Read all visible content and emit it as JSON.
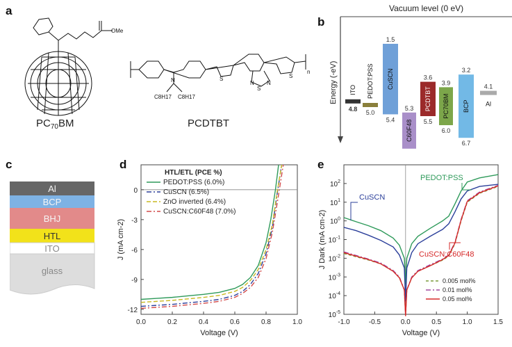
{
  "panel_labels": [
    "a",
    "b",
    "c",
    "d",
    "e"
  ],
  "panel_a": {
    "molecule1_name": "PC70BM",
    "molecule1_sub": "70",
    "molecule1_prefix": "PC",
    "molecule1_suffix": "BM",
    "molecule1_group": "OMe",
    "molecule2_name": "PCDTBT",
    "molecule2_sidechain": "C8H17",
    "molecule2_n": "n",
    "atoms": {
      "N": "N",
      "S": "S"
    }
  },
  "panel_b": {
    "title": "Vacuum level (0 eV)",
    "ylabel": "Energy (-eV)",
    "materials": [
      {
        "name": "ITO",
        "top": "",
        "bottom": "4.8",
        "color": "#333333"
      },
      {
        "name": "PEDOT:PSS",
        "top": "",
        "bottom": "5.0",
        "color": "#8a7f3b"
      },
      {
        "name": "CuSCN",
        "top": "1.5",
        "bottom": "5.4",
        "color": "#6fa0d8"
      },
      {
        "name": "C60F48",
        "top": "5.3",
        "bottom": "",
        "color": "#a98fc9"
      },
      {
        "name": "PCDTBT",
        "top": "3.6",
        "bottom": "5.5",
        "color": "#9b2a2a"
      },
      {
        "name": "PC70BM",
        "top": "3.9",
        "bottom": "6.0",
        "color": "#7ca64a"
      },
      {
        "name": "BCP",
        "top": "3.2",
        "bottom": "6.7",
        "color": "#72b9e6"
      },
      {
        "name": "Al",
        "top": "4.1",
        "bottom": "",
        "color": "#aaaaaa"
      }
    ]
  },
  "panel_c": {
    "layers": [
      {
        "name": "Al",
        "color": "#666666"
      },
      {
        "name": "BCP",
        "color": "#7eb2e4"
      },
      {
        "name": "BHJ",
        "color": "#e28a8a"
      },
      {
        "name": "HTL",
        "color": "#f2e21a"
      },
      {
        "name": "ITO",
        "color": "#ffffff"
      },
      {
        "name": "glass",
        "color": "#dddddd"
      }
    ]
  },
  "chart_data": [
    {
      "type": "line",
      "panel": "d",
      "xlabel": "Voltage (V)",
      "ylabel": "J (mA cm-2)",
      "xlim": [
        0.0,
        1.0
      ],
      "ylim": [
        -12.5,
        2.5
      ],
      "xticks": [
        "0.0",
        "0.2",
        "0.4",
        "0.6",
        "0.8",
        "1.0"
      ],
      "yticks": [
        "0",
        "-3",
        "-6",
        "-9",
        "-12"
      ],
      "legend_title": "HTL/ETL (PCE %)",
      "series": [
        {
          "name": "PEDOT:PSS (6.0%)",
          "color": "#2e9a5a",
          "dash": "",
          "x": [
            0,
            0.1,
            0.2,
            0.3,
            0.4,
            0.5,
            0.6,
            0.65,
            0.7,
            0.75,
            0.8,
            0.83,
            0.86,
            0.88
          ],
          "y": [
            -11.0,
            -10.9,
            -10.8,
            -10.65,
            -10.5,
            -10.3,
            -9.9,
            -9.5,
            -8.8,
            -7.6,
            -5.3,
            -3.0,
            0.0,
            2.5
          ]
        },
        {
          "name": "CuSCN (6.5%)",
          "color": "#2b3f9a",
          "dash": "7,3,2,3",
          "x": [
            0,
            0.1,
            0.2,
            0.3,
            0.4,
            0.5,
            0.6,
            0.65,
            0.7,
            0.75,
            0.8,
            0.84,
            0.87,
            0.9
          ],
          "y": [
            -11.7,
            -11.6,
            -11.5,
            -11.35,
            -11.2,
            -11.0,
            -10.6,
            -10.2,
            -9.5,
            -8.4,
            -6.4,
            -3.8,
            -0.5,
            2.5
          ]
        },
        {
          "name": "ZnO inverted (6.4%)",
          "color": "#c9b820",
          "dash": "6,3",
          "x": [
            0,
            0.1,
            0.2,
            0.3,
            0.4,
            0.5,
            0.6,
            0.65,
            0.7,
            0.75,
            0.8,
            0.84,
            0.87,
            0.9
          ],
          "y": [
            -11.3,
            -11.2,
            -11.1,
            -10.95,
            -10.8,
            -10.6,
            -10.2,
            -9.8,
            -9.1,
            -8.0,
            -6.0,
            -3.5,
            -0.3,
            2.5
          ]
        },
        {
          "name": "CuSCN:C60F48 (7.0%)",
          "color": "#d24a4a",
          "dash": "7,3,2,3",
          "x": [
            0,
            0.1,
            0.2,
            0.3,
            0.4,
            0.5,
            0.6,
            0.65,
            0.7,
            0.75,
            0.8,
            0.84,
            0.88,
            0.91
          ],
          "y": [
            -11.9,
            -11.8,
            -11.7,
            -11.55,
            -11.4,
            -11.2,
            -10.8,
            -10.4,
            -9.8,
            -8.8,
            -6.9,
            -4.3,
            -0.5,
            2.5
          ]
        }
      ]
    },
    {
      "type": "line",
      "panel": "e",
      "xlabel": "Voltage (V)",
      "ylabel": "J Dark (mA cm-2)",
      "yscale": "log",
      "xlim": [
        -1.0,
        1.5
      ],
      "ylim": [
        1e-05,
        1000
      ],
      "xticks": [
        "-1.0",
        "-0.5",
        "0.0",
        "0.5",
        "1.0",
        "1.5"
      ],
      "yticks_exp": [
        "-5",
        "-4",
        "-3",
        "-2",
        "-1",
        "0",
        "1",
        "2"
      ],
      "annotations": [
        "CuSCN",
        "PEDOT:PSS",
        "CuSCN:C60F48"
      ],
      "legend": [
        "0.005 mol%",
        "0.01 mol%",
        "0.05 mol%"
      ],
      "series": [
        {
          "name": "PEDOT:PSS",
          "color": "#2e9a5a",
          "dash": "",
          "x": [
            -1.0,
            -0.8,
            -0.6,
            -0.4,
            -0.2,
            -0.1,
            -0.02,
            0,
            0.02,
            0.1,
            0.2,
            0.4,
            0.6,
            0.7,
            0.8,
            0.9,
            1.0,
            1.2,
            1.5
          ],
          "y": [
            1.5,
            0.9,
            0.55,
            0.3,
            0.12,
            0.05,
            0.01,
            0.0004,
            0.01,
            0.06,
            0.15,
            0.4,
            1.0,
            1.8,
            8,
            40,
            120,
            200,
            300
          ]
        },
        {
          "name": "CuSCN",
          "color": "#2b3f9a",
          "dash": "",
          "x": [
            -1.0,
            -0.8,
            -0.6,
            -0.4,
            -0.2,
            -0.1,
            -0.02,
            0,
            0.02,
            0.1,
            0.2,
            0.4,
            0.6,
            0.7,
            0.8,
            0.9,
            1.0,
            1.2,
            1.5
          ],
          "y": [
            0.45,
            0.3,
            0.17,
            0.09,
            0.04,
            0.015,
            0.003,
            5e-05,
            0.003,
            0.02,
            0.06,
            0.15,
            0.35,
            0.7,
            3,
            15,
            40,
            70,
            90
          ]
        },
        {
          "name": "0.005 mol%",
          "color": "#7a9a3a",
          "dash": "4,3",
          "x": [
            -1.0,
            -0.8,
            -0.6,
            -0.4,
            -0.2,
            -0.1,
            -0.02,
            0,
            0.02,
            0.1,
            0.2,
            0.4,
            0.6,
            0.7,
            0.8,
            0.9,
            1.0,
            1.2,
            1.5
          ],
          "y": [
            0.018,
            0.012,
            0.008,
            0.005,
            0.002,
            0.0009,
            0.0002,
            1e-05,
            0.0002,
            0.0009,
            0.002,
            0.004,
            0.008,
            0.013,
            0.06,
            1.0,
            10,
            30,
            70
          ]
        },
        {
          "name": "0.01 mol%",
          "color": "#a04aa0",
          "dash": "7,3,2,3",
          "x": [
            -1.0,
            -0.8,
            -0.6,
            -0.4,
            -0.2,
            -0.1,
            -0.02,
            0,
            0.02,
            0.1,
            0.2,
            0.4,
            0.6,
            0.7,
            0.8,
            0.9,
            1.0,
            1.2,
            1.5
          ],
          "y": [
            0.022,
            0.014,
            0.009,
            0.0055,
            0.0022,
            0.001,
            0.0002,
            1e-05,
            0.0002,
            0.001,
            0.0022,
            0.0045,
            0.009,
            0.015,
            0.07,
            1.2,
            12,
            35,
            80
          ]
        },
        {
          "name": "0.05 mol%",
          "color": "#d62a2a",
          "dash": "",
          "x": [
            -1.0,
            -0.8,
            -0.6,
            -0.4,
            -0.2,
            -0.1,
            -0.02,
            0,
            0.02,
            0.1,
            0.2,
            0.4,
            0.6,
            0.7,
            0.8,
            0.9,
            1.0,
            1.2,
            1.5
          ],
          "y": [
            0.02,
            0.013,
            0.0085,
            0.005,
            0.002,
            0.0009,
            0.0002,
            8e-06,
            0.0002,
            0.0009,
            0.002,
            0.004,
            0.0085,
            0.014,
            0.065,
            1.1,
            11,
            32,
            75
          ]
        }
      ]
    }
  ]
}
